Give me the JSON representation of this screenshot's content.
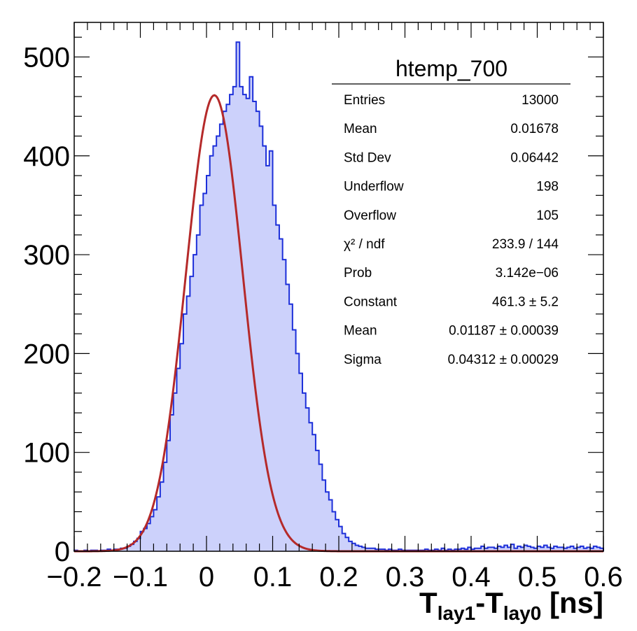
{
  "chart_data": {
    "type": "bar",
    "title": "",
    "xlabel": {
      "main1": "T",
      "sub1": "lay1",
      "dash": "-",
      "main2": "T",
      "sub2": "lay0",
      "unit": " [ns]"
    },
    "ylabel": "",
    "xlim": [
      -0.2,
      0.6
    ],
    "ylim": [
      0,
      535
    ],
    "x_ticks": [
      -0.2,
      -0.1,
      0,
      0.1,
      0.2,
      0.3,
      0.4,
      0.5,
      0.6
    ],
    "x_tick_labels": [
      "−0.2",
      "−0.1",
      "0",
      "0.1",
      "0.2",
      "0.3",
      "0.4",
      "0.5",
      "0.6"
    ],
    "y_ticks": [
      0,
      100,
      200,
      300,
      400,
      500
    ],
    "y_tick_labels": [
      "0",
      "100",
      "200",
      "300",
      "400",
      "500"
    ],
    "grid": false,
    "legend": "none",
    "histogram": {
      "name": "htemp_700",
      "bin_low": -0.2,
      "bin_width": 0.005,
      "counts": [
        1,
        0,
        0,
        1,
        0,
        1,
        1,
        0,
        1,
        1,
        2,
        1,
        2,
        2,
        3,
        3,
        5,
        7,
        10,
        13,
        20,
        23,
        28,
        35,
        42,
        55,
        70,
        90,
        112,
        138,
        160,
        185,
        210,
        240,
        258,
        278,
        300,
        320,
        350,
        362,
        380,
        400,
        410,
        420,
        432,
        445,
        452,
        462,
        470,
        515,
        470,
        462,
        458,
        480,
        455,
        445,
        430,
        410,
        390,
        405,
        350,
        330,
        316,
        295,
        270,
        250,
        224,
        200,
        180,
        160,
        145,
        130,
        118,
        102,
        88,
        72,
        60,
        52,
        40,
        32,
        25,
        18,
        14,
        10,
        8,
        6,
        5,
        4,
        3,
        3,
        3,
        2,
        2,
        2,
        1,
        2,
        1,
        1,
        2,
        1,
        1,
        1,
        1,
        1,
        1,
        1,
        2,
        1,
        1,
        2,
        1,
        3,
        1,
        2,
        1,
        2,
        2,
        3,
        2,
        4,
        2,
        3,
        3,
        5,
        3,
        4,
        4,
        3,
        5,
        4,
        6,
        4,
        7,
        3,
        5,
        4,
        6,
        5,
        4,
        3,
        5,
        4,
        6,
        4,
        3,
        5,
        4,
        4,
        3,
        4,
        5,
        3,
        4,
        5,
        3,
        4,
        3,
        5,
        4,
        3
      ],
      "line_color": "#1c2fd9",
      "fill_color": "#ccd1fb"
    },
    "fit": {
      "function": "gaus",
      "constant": 461.3,
      "mean": 0.01187,
      "sigma": 0.04312,
      "color": "#b52a2a"
    }
  },
  "stats_box": {
    "title": "htemp_700",
    "rows": [
      {
        "label": "Entries",
        "value": "13000"
      },
      {
        "label": "Mean",
        "value": "0.01678"
      },
      {
        "label": "Std Dev",
        "value": "0.06442"
      },
      {
        "label": "Underflow",
        "value": "198"
      },
      {
        "label": "Overflow",
        "value": "105"
      },
      {
        "label": "χ² / ndf",
        "value": "233.9 / 144"
      },
      {
        "label": "Prob",
        "value": "3.142e−06"
      },
      {
        "label": "Constant",
        "value": "461.3 ± 5.2"
      },
      {
        "label": "Mean",
        "value": "0.01187 ± 0.00039"
      },
      {
        "label": "Sigma",
        "value": "0.04312 ± 0.00029"
      }
    ]
  }
}
